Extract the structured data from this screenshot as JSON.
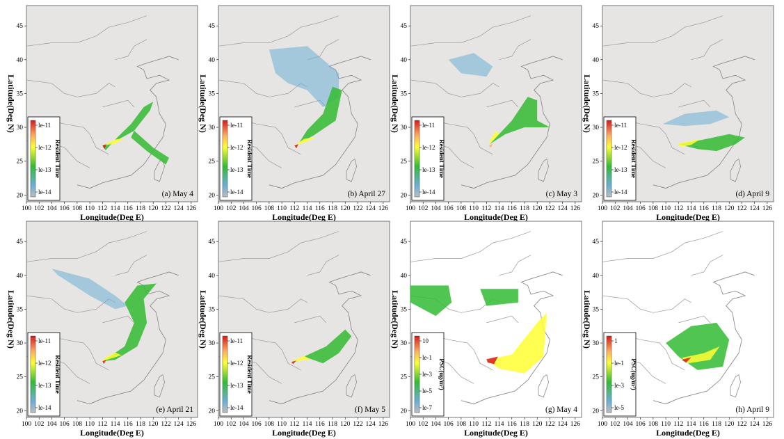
{
  "panels": [
    {
      "id": "a",
      "title": "(a) May 4",
      "kind": "rt",
      "bg": "#e6e5e3"
    },
    {
      "id": "b",
      "title": "(b) April 27",
      "kind": "rt",
      "bg": "#e6e5e3"
    },
    {
      "id": "c",
      "title": "(c) May 3",
      "kind": "rt",
      "bg": "#e6e5e3"
    },
    {
      "id": "d",
      "title": "(d) April 9",
      "kind": "rt",
      "bg": "#e6e5e3"
    },
    {
      "id": "e",
      "title": "(e) April 21",
      "kind": "rt",
      "bg": "#e6e5e3"
    },
    {
      "id": "f",
      "title": "(f) May 5",
      "kind": "rt",
      "bg": "#e6e5e3"
    },
    {
      "id": "g",
      "title": "(g) May 4",
      "kind": "psc",
      "bg": "#ffffff"
    },
    {
      "id": "h",
      "title": "(h) April 9",
      "kind": "psc",
      "bg": "#ffffff"
    }
  ],
  "axes": {
    "xlabel": "Longitude(Deg E)",
    "ylabel": "Latitude(Deg N)",
    "xticks": [
      "100",
      "102",
      "104",
      "106",
      "108",
      "110",
      "112",
      "114",
      "116",
      "118",
      "120",
      "122",
      "124",
      "126"
    ],
    "yticks": [
      "20",
      "25",
      "30",
      "35",
      "40",
      "45"
    ],
    "xlim": [
      100,
      127
    ],
    "ylim": [
      19,
      48
    ]
  },
  "colorbars": {
    "rt": {
      "title": "Resident Time",
      "ticks": [
        "le-11",
        "le-12",
        "le-13",
        "le-14"
      ]
    },
    "psc": {
      "title": "PSC(ug/m³)",
      "ticks": [
        "10",
        "le-1",
        "le-3",
        "le-5",
        "le-7"
      ]
    },
    "psc_h": {
      "title": "PSC(ug/m³)",
      "ticks": [
        "1",
        "le-1",
        "le-3",
        "le-5"
      ]
    }
  },
  "colors": {
    "red": "#d7191c",
    "orange": "#fdae61",
    "yellow": "#ffff33",
    "green": "#33bb33",
    "blue": "#6baed6",
    "gray": "#bdbdbd"
  }
}
